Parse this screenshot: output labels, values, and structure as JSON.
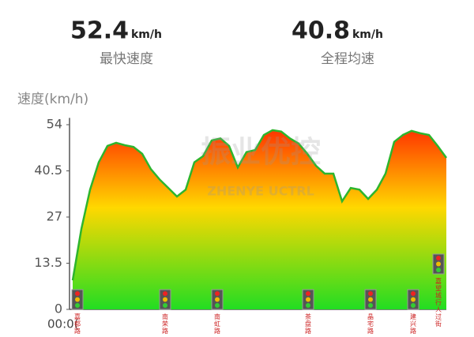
{
  "stats": [
    {
      "value": "52.4",
      "unit": "km/h",
      "label": "最快速度"
    },
    {
      "value": "40.8",
      "unit": "km/h",
      "label": "全程均速"
    }
  ],
  "watermark": {
    "title": "振业优控",
    "subtitle": "ZHENYE UCTRL"
  },
  "chart_data": {
    "type": "area",
    "y_label": "速度(km/h)",
    "x_start_label": "00:0(",
    "color": "#2db52d",
    "gradient": [
      "#ff2a00",
      "#ffd800",
      "#22dd22"
    ],
    "ylim": [
      0,
      56
    ],
    "yticks": [
      0,
      13.5,
      27,
      40.5,
      54
    ],
    "values": [
      8.5,
      23.5,
      35,
      43,
      47.8,
      48.7,
      48,
      47.5,
      45.5,
      41,
      38,
      35.5,
      33,
      35,
      43,
      44.8,
      49.4,
      50,
      47.8,
      41.5,
      46,
      46.6,
      51,
      52.4,
      52,
      50,
      48.5,
      45.5,
      42,
      39.7,
      39.7,
      31.6,
      35.5,
      35,
      32.3,
      35,
      39.7,
      49,
      51,
      52.2,
      51.5,
      51,
      47.8,
      44.3
    ],
    "signals": [
      "嘉都路",
      "南荣路",
      "南虹路",
      "茶盘路",
      "晶宅路",
      "建兴路",
      "嘉望城行人过街"
    ]
  }
}
